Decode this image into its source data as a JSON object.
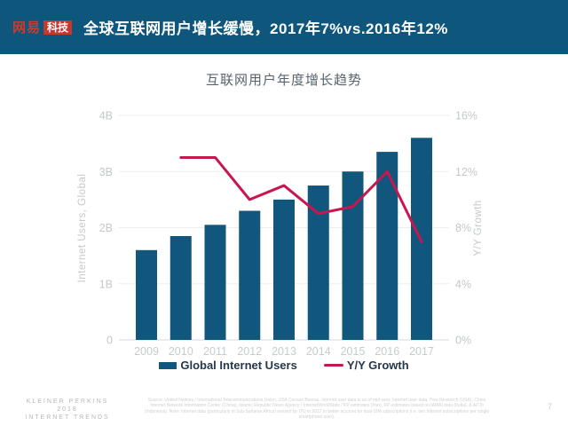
{
  "header": {
    "logo": {
      "name": "网易",
      "badge": "科技"
    },
    "title": "全球互联网用户增长缓慢，2017年7%vs.2016年12%"
  },
  "chart_data": {
    "type": "bar",
    "title": "互联网用户年度增长趋势",
    "categories": [
      "2009",
      "2010",
      "2011",
      "2012",
      "2013",
      "2014",
      "2015",
      "2016",
      "2017"
    ],
    "series": [
      {
        "name": "Global Internet Users",
        "type": "bar",
        "axis": "left",
        "unit": "billions",
        "values": [
          1.6,
          1.85,
          2.05,
          2.3,
          2.5,
          2.75,
          3.0,
          3.35,
          3.6
        ]
      },
      {
        "name": "Y/Y Growth",
        "type": "line",
        "axis": "right",
        "unit": "%",
        "values": [
          null,
          13,
          13,
          10,
          11,
          9,
          9.5,
          12,
          7
        ]
      }
    ],
    "xlabel": "",
    "ylabel_left": "Internet Users, Global",
    "ylabel_right": "Y/Y Growth",
    "ylim_left": [
      0,
      4
    ],
    "ylim_right": [
      0,
      16
    ],
    "yticks_left": [
      "0",
      "1B",
      "2B",
      "3B",
      "4B"
    ],
    "yticks_right": [
      "0%",
      "4%",
      "8%",
      "12%",
      "16%"
    ],
    "grid": true,
    "legend_position": "bottom",
    "colors": {
      "bar": "#11567d",
      "line": "#c8164e",
      "grid": "#eceeef",
      "baseline": "#d7dadd",
      "tick_text": "#c4c8cc"
    }
  },
  "footer": {
    "brand": [
      "KLEINER PERKINS",
      "2018",
      "INTERNET TRENDS"
    ],
    "source_note": "Source: United Nations / International Telecommunications Union, USA Census Bureau. Internet user data is as of mid-year. Internet user data: Pew Research (USA), China Internet Network Information Center (China), Islamic Republic News Agency / InternetWorldStats / KP estimates (Iran), KP estimates based on IAMAI data (India), & APJII (Indonesia). Note: Internet data (particularly in Sub-Saharan Africa) revised by ITU in 2017 to better account for dual-SIM subscriptions (i.e. two Internet subscriptions per single smartphone user).",
    "page_number": "7"
  }
}
